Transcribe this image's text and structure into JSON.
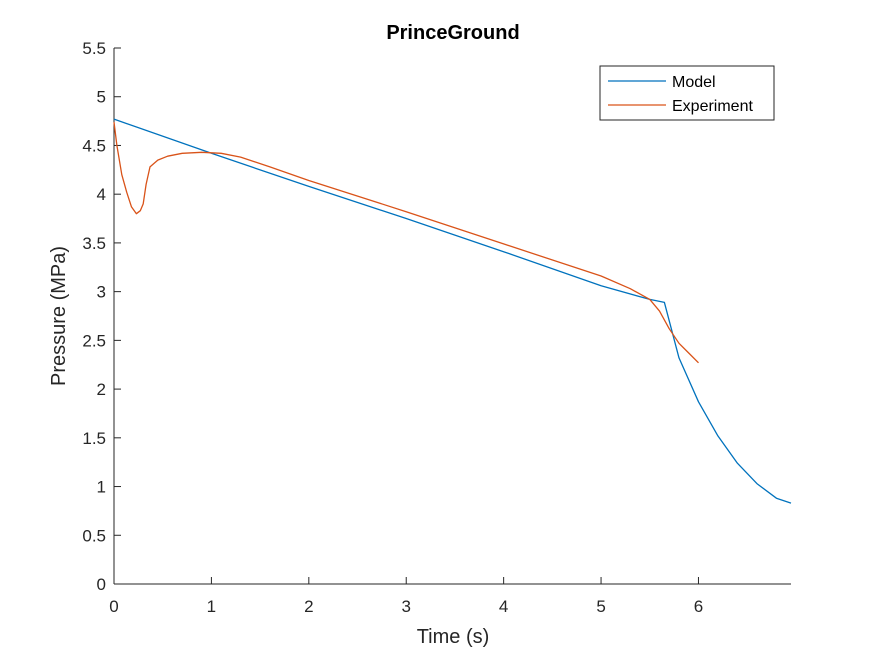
{
  "chart_data": {
    "type": "line",
    "title": "PrinceGround",
    "xlabel": "Time (s)",
    "ylabel": "Pressure (MPa)",
    "xlim": [
      0,
      6.95
    ],
    "ylim": [
      0,
      5.5
    ],
    "xticks": [
      "0",
      "1",
      "2",
      "3",
      "4",
      "5",
      "6"
    ],
    "yticks": [
      "0",
      "0.5",
      "1",
      "1.5",
      "2",
      "2.5",
      "3",
      "3.5",
      "4",
      "4.5",
      "5",
      "5.5"
    ],
    "grid": false,
    "legend_position": "top-right",
    "series": [
      {
        "name": "Model",
        "color": "#0072BD",
        "x": [
          0,
          1,
          2,
          3,
          4,
          5,
          5.5,
          5.65,
          5.8,
          6.0,
          6.2,
          6.4,
          6.6,
          6.8,
          6.95
        ],
        "y": [
          4.77,
          4.42,
          4.08,
          3.75,
          3.41,
          3.06,
          2.92,
          2.89,
          2.32,
          1.87,
          1.52,
          1.24,
          1.03,
          0.88,
          0.83
        ]
      },
      {
        "name": "Experiment",
        "color": "#D95319",
        "x": [
          0,
          0.03,
          0.08,
          0.13,
          0.18,
          0.23,
          0.27,
          0.3,
          0.33,
          0.37,
          0.45,
          0.55,
          0.7,
          0.9,
          1.1,
          1.3,
          1.6,
          2,
          3,
          4,
          5,
          5.3,
          5.5,
          5.6,
          5.7,
          5.8,
          5.9,
          6.0
        ],
        "y": [
          4.74,
          4.5,
          4.2,
          4.02,
          3.87,
          3.8,
          3.83,
          3.9,
          4.1,
          4.28,
          4.35,
          4.39,
          4.42,
          4.43,
          4.42,
          4.38,
          4.28,
          4.14,
          3.82,
          3.49,
          3.16,
          3.03,
          2.92,
          2.8,
          2.62,
          2.47,
          2.37,
          2.27
        ]
      }
    ]
  }
}
